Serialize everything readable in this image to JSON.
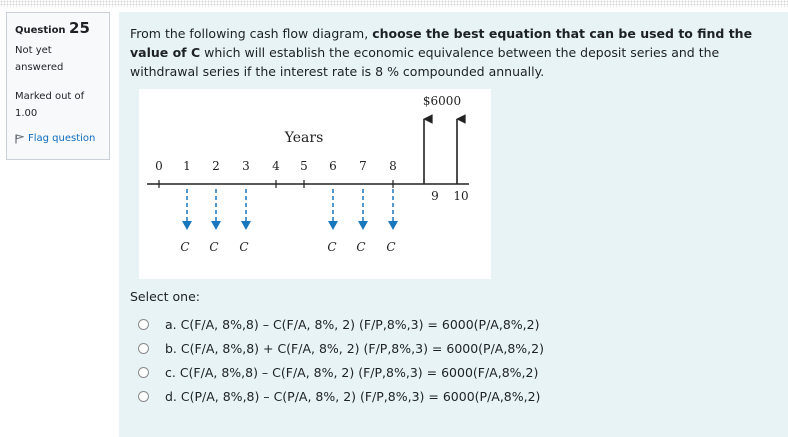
{
  "question_info": {
    "label": "Question",
    "number": "25",
    "state": [
      "Not yet",
      "answered"
    ],
    "mark": [
      "Marked out of",
      "1.00"
    ],
    "flag": "Flag question"
  },
  "question": {
    "text_1": "From the following cash flow diagram, ",
    "text_bold": "choose the best equation that can be used to find the value of C",
    "text_2": " which will establish the economic equivalence between the deposit series and the withdrawal series if the interest rate is 8 % compounded annually."
  },
  "diagram": {
    "axis_title": "Years",
    "amount_label": "$6000",
    "top_years": [
      "0",
      "1",
      "2",
      "3",
      "4",
      "5",
      "6",
      "7",
      "8"
    ],
    "bottom_years": [
      "9",
      "10"
    ],
    "c_labels": [
      "C",
      "C",
      "C",
      "C",
      "C",
      "C"
    ]
  },
  "answer": {
    "prompt": "Select one:",
    "options": [
      "a. C(F/A, 8%,8) – C(F/A, 8%, 2) (F/P,8%,3) = 6000(P/A,8%,2)",
      "b. C(F/A, 8%,8) + C(F/A, 8%, 2) (F/P,8%,3) = 6000(P/A,8%,2)",
      "c. C(F/A, 8%,8) – C(F/A, 8%, 2) (F/P,8%,3) = 6000(F/A,8%,2)",
      "d. C(P/A, 8%,8) – C(P/A, 8%, 2) (F/P,8%,3) = 6000(P/A,8%,2)"
    ]
  }
}
